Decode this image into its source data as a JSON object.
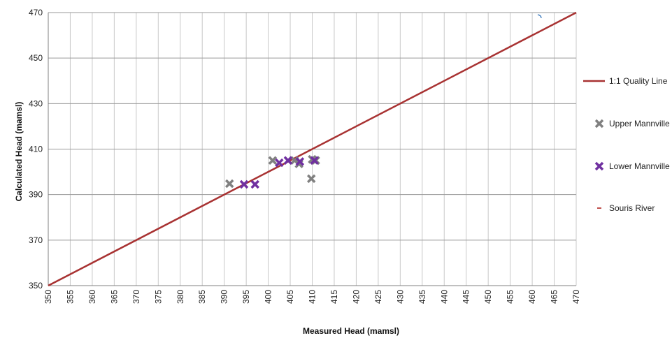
{
  "chart_data": {
    "type": "scatter",
    "title": "",
    "xlabel": "Measured Head (mamsl)",
    "ylabel": "Calculated Head (mamsl)",
    "xlim": [
      350,
      470
    ],
    "ylim": [
      350,
      470
    ],
    "x_ticks": [
      350,
      355,
      360,
      365,
      370,
      375,
      380,
      385,
      390,
      395,
      400,
      405,
      410,
      415,
      420,
      425,
      430,
      435,
      440,
      445,
      450,
      455,
      460,
      465,
      470
    ],
    "y_ticks": [
      350,
      370,
      390,
      410,
      430,
      450,
      470
    ],
    "grid": true,
    "legend_position": "right",
    "series": [
      {
        "name": "1:1 Quality Line",
        "kind": "line",
        "color": "#a83232",
        "points": [
          [
            350,
            350
          ],
          [
            470,
            470
          ]
        ]
      },
      {
        "name": "Upper Mannville",
        "kind": "marker-x",
        "color": "#808080",
        "points": [
          [
            391.2,
            394.8
          ],
          [
            401,
            405
          ],
          [
            406,
            405
          ],
          [
            407,
            403.5
          ],
          [
            409.8,
            397
          ],
          [
            410,
            405.5
          ],
          [
            410.8,
            405
          ]
        ]
      },
      {
        "name": "Lower Mannville",
        "kind": "marker-x",
        "color": "#7030a0",
        "points": [
          [
            394.5,
            394.5
          ],
          [
            397,
            394.5
          ],
          [
            402.5,
            404
          ],
          [
            404.5,
            405
          ],
          [
            407.2,
            404.5
          ],
          [
            410.5,
            405
          ]
        ]
      },
      {
        "name": "Souris River",
        "kind": "marker-dash",
        "color": "#c0504d",
        "points": []
      }
    ]
  }
}
